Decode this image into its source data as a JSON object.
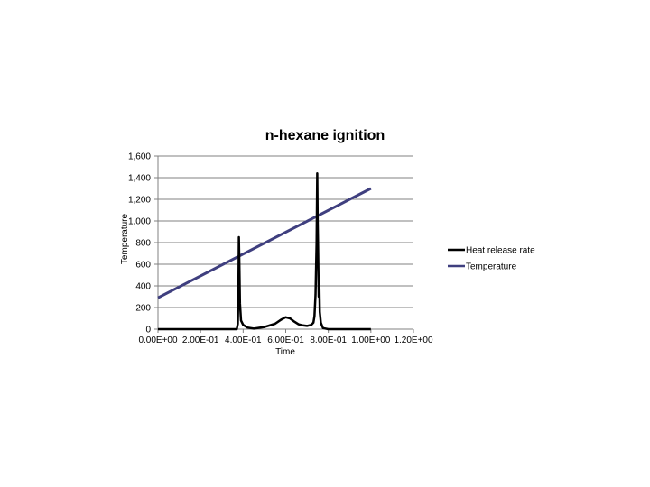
{
  "chart_data": {
    "type": "line",
    "title": "n-hexane ignition",
    "xlabel": "Time",
    "ylabel": "Temperature",
    "xlim": [
      0,
      1.2
    ],
    "ylim": [
      0,
      1600
    ],
    "x_ticks": [
      0,
      0.2,
      0.4,
      0.6,
      0.8,
      1.0,
      1.2
    ],
    "x_tick_labels": [
      "0.00E+00",
      "2.00E-01",
      "4.00E-01",
      "6.00E-01",
      "8.00E-01",
      "1.00E+00",
      "1.20E+00"
    ],
    "y_ticks": [
      0,
      200,
      400,
      600,
      800,
      1000,
      1200,
      1400,
      1600
    ],
    "y_tick_labels": [
      "0",
      "200",
      "400",
      "600",
      "800",
      "1,000",
      "1,200",
      "1,400",
      "1,600"
    ],
    "grid": "horizontal",
    "legend_position": "right",
    "series": [
      {
        "name": "Heat release rate",
        "color": "#000000",
        "x": [
          0,
          0.37,
          0.375,
          0.378,
          0.38,
          0.382,
          0.385,
          0.39,
          0.4,
          0.42,
          0.45,
          0.5,
          0.55,
          0.58,
          0.6,
          0.62,
          0.64,
          0.66,
          0.68,
          0.7,
          0.72,
          0.73,
          0.735,
          0.74,
          0.745,
          0.748,
          0.75,
          0.752,
          0.755,
          0.758,
          0.76,
          0.765,
          0.775,
          0.8,
          1.0
        ],
        "y": [
          0,
          0,
          50,
          380,
          850,
          640,
          240,
          80,
          40,
          15,
          5,
          20,
          50,
          90,
          110,
          100,
          70,
          45,
          35,
          30,
          40,
          60,
          120,
          320,
          800,
          1440,
          1000,
          750,
          300,
          380,
          160,
          60,
          10,
          0,
          0
        ]
      },
      {
        "name": "Temperature",
        "color": "#3f3f7f",
        "x": [
          0,
          1.0
        ],
        "y": [
          290,
          1300
        ]
      }
    ]
  }
}
